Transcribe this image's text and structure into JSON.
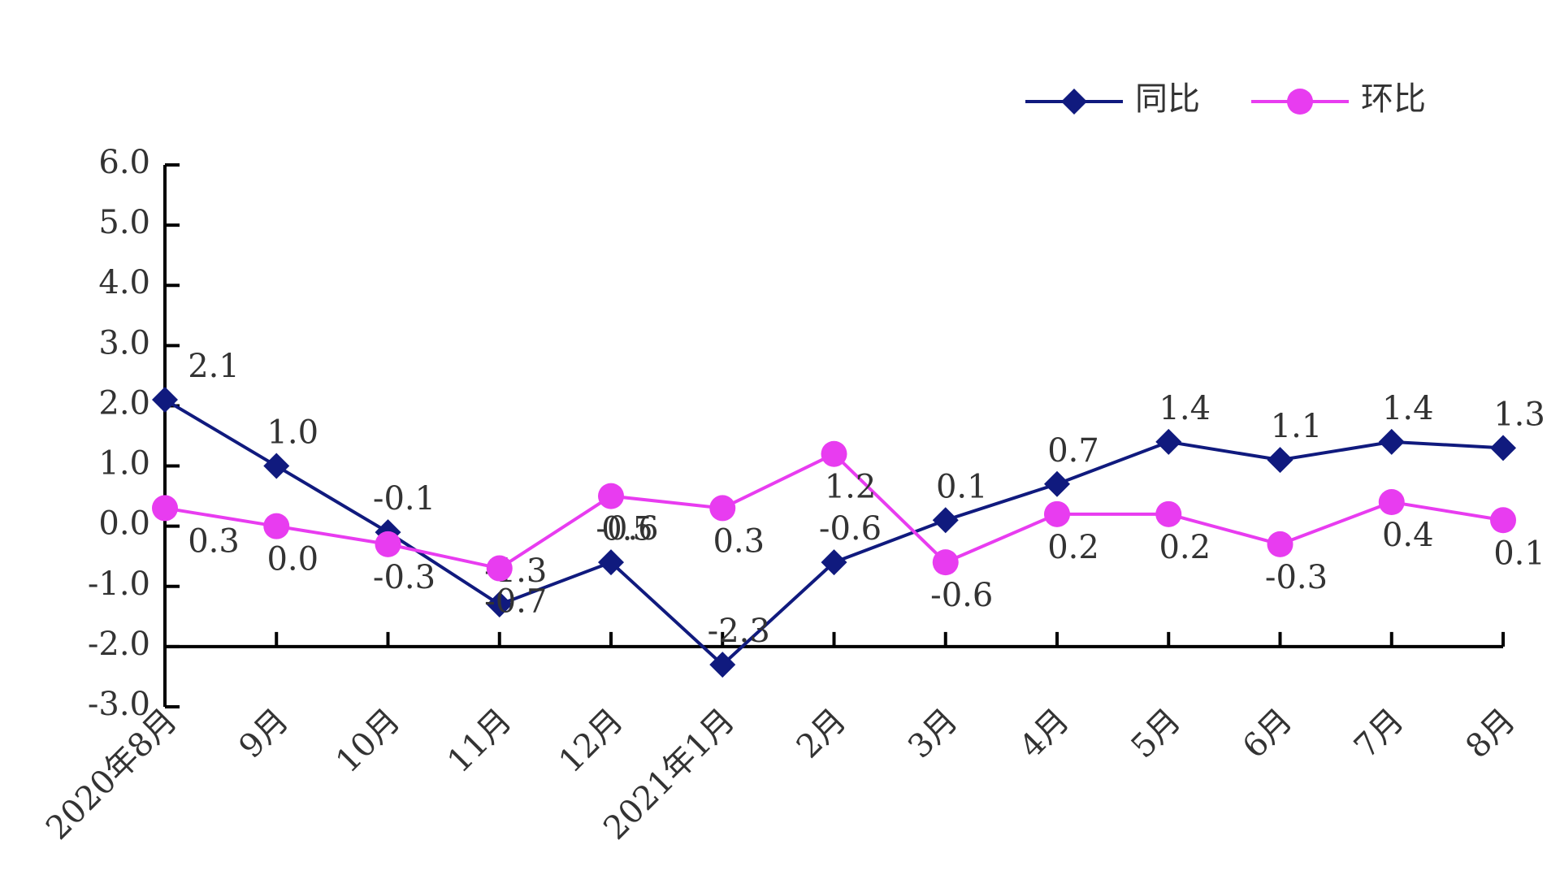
{
  "chart_data": {
    "type": "line",
    "categories": [
      "2020年8月",
      "9月",
      "10月",
      "11月",
      "12月",
      "2021年1月",
      "2月",
      "3月",
      "4月",
      "5月",
      "6月",
      "7月",
      "8月"
    ],
    "series": [
      {
        "name": "同比",
        "color": "#101a7e",
        "marker": "diamond",
        "values": [
          2.1,
          1.0,
          -0.1,
          -1.3,
          -0.6,
          -2.3,
          -0.6,
          0.1,
          0.7,
          1.4,
          1.1,
          1.4,
          1.3
        ],
        "value_labels": [
          "2.1",
          "1.0",
          "-0.1",
          "-1.3",
          "-0.6",
          "-2.3",
          "-0.6",
          "0.1",
          "0.7",
          "1.4",
          "1.1",
          "1.4",
          "1.3"
        ]
      },
      {
        "name": "环比",
        "color": "#e83cf0",
        "marker": "circle",
        "values": [
          0.3,
          0.0,
          -0.3,
          -0.7,
          0.5,
          0.3,
          1.2,
          -0.6,
          0.2,
          0.2,
          -0.3,
          0.4,
          0.1
        ],
        "value_labels": [
          "0.3",
          "0.0",
          "-0.3",
          "-0.7",
          "0.5",
          "0.3",
          "1.2",
          "-0.6",
          "0.2",
          "0.2",
          "-0.3",
          "0.4",
          "0.1"
        ]
      }
    ],
    "ylim": [
      -3,
      6
    ],
    "yticks": [
      {
        "value": -3,
        "label": "-3.0"
      },
      {
        "value": -2,
        "label": "-2.0"
      },
      {
        "value": -1,
        "label": "-1.0"
      },
      {
        "value": 0,
        "label": "0.0"
      },
      {
        "value": 1,
        "label": "1.0"
      },
      {
        "value": 2,
        "label": "2.0"
      },
      {
        "value": 3,
        "label": "3.0"
      },
      {
        "value": 4,
        "label": "4.0"
      },
      {
        "value": 5,
        "label": "5.0"
      },
      {
        "value": 6,
        "label": "6.0"
      }
    ],
    "x_axis_crosses": -2,
    "legend": "top-right"
  }
}
